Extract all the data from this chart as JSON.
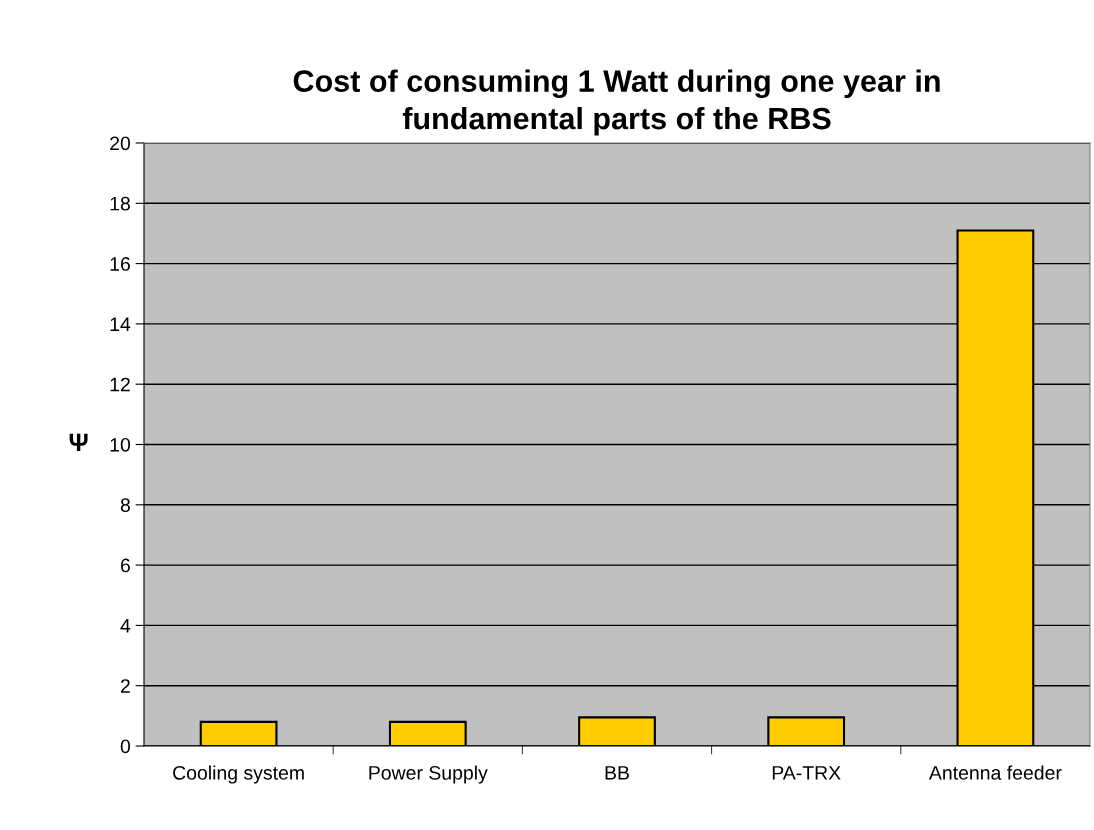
{
  "chart_data": {
    "type": "bar",
    "title": "Cost of consuming 1 Watt during one year in\nfundamental parts of the RBS",
    "ylabel": "Ψ",
    "categories": [
      "Cooling system",
      "Power Supply",
      "BB",
      "PA-TRX",
      "Antenna feeder"
    ],
    "values": [
      0.8,
      0.8,
      0.95,
      0.95,
      17.1
    ],
    "color": "#ffcc00",
    "ylim": [
      0,
      20
    ],
    "yticks": [
      0,
      2,
      4,
      6,
      8,
      10,
      12,
      14,
      16,
      18,
      20
    ],
    "grid": "y",
    "legend": false
  }
}
